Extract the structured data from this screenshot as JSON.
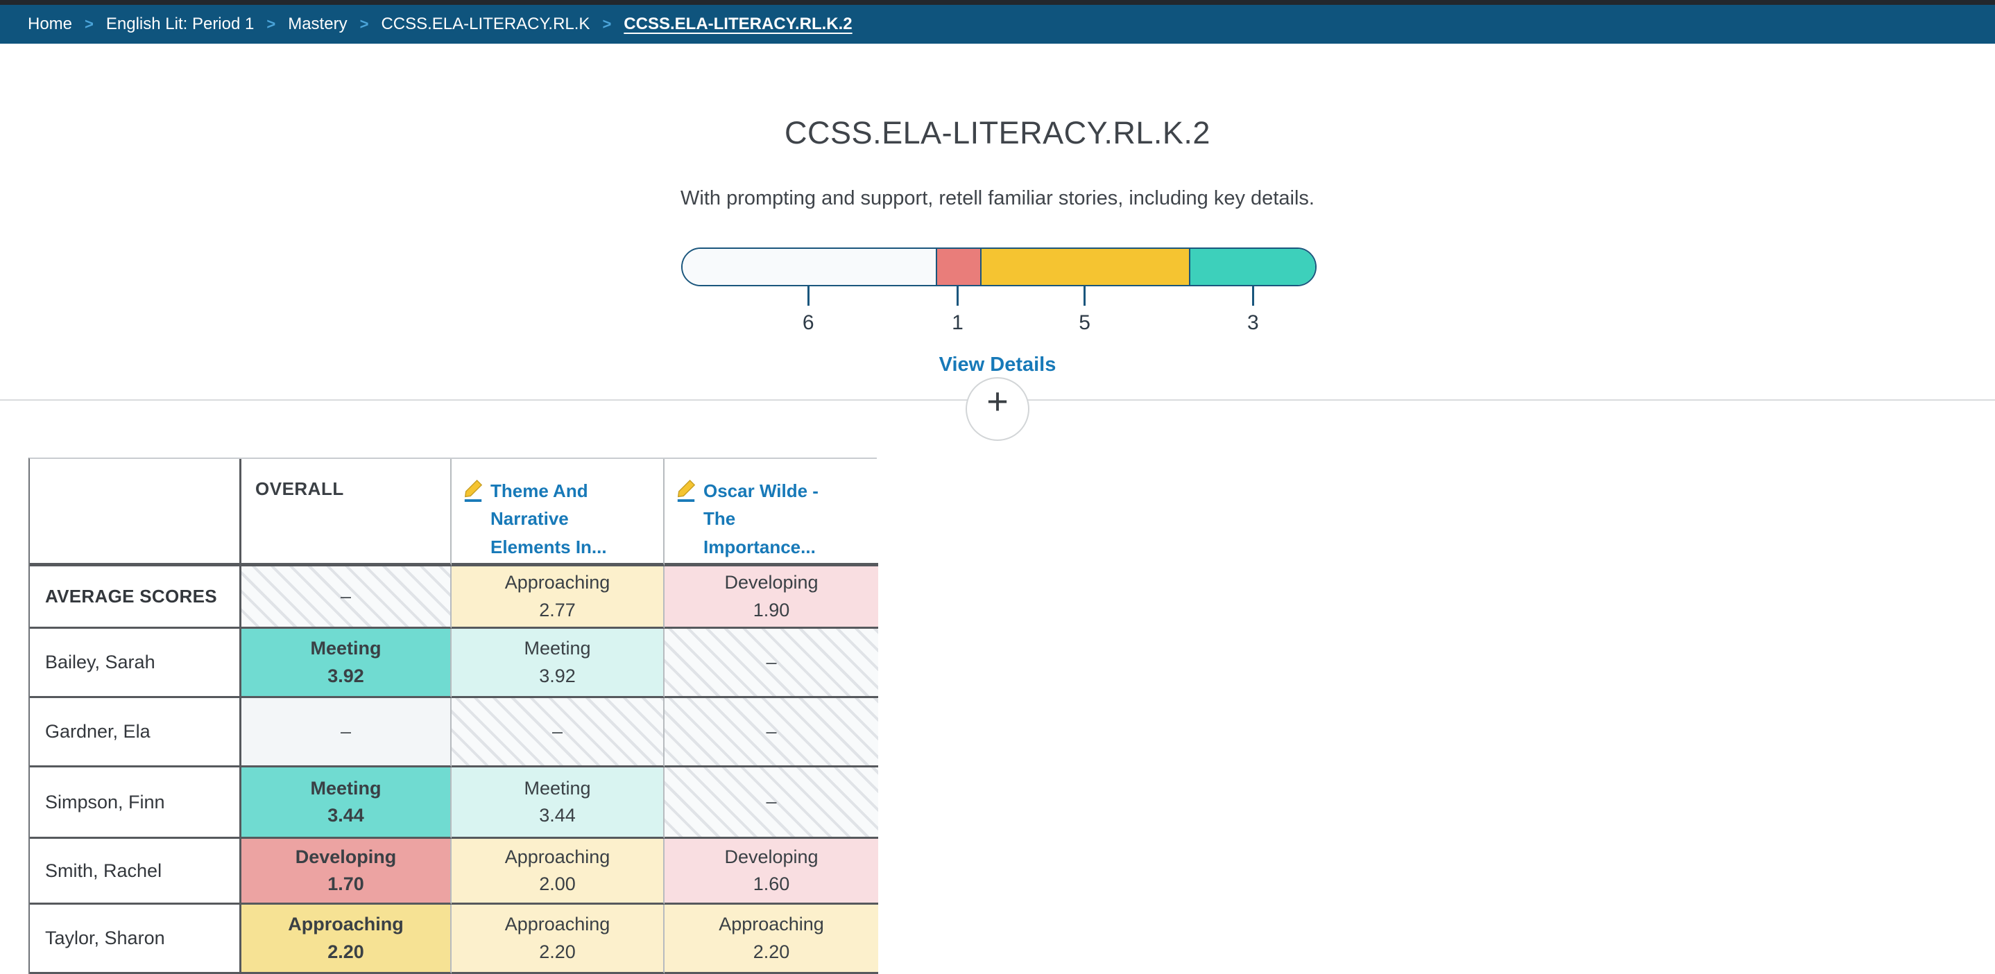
{
  "breadcrumb": {
    "separator": ">",
    "items": [
      {
        "label": "Home",
        "active": false
      },
      {
        "label": "English Lit: Period 1",
        "active": false
      },
      {
        "label": "Mastery",
        "active": false
      },
      {
        "label": "CCSS.ELA-LITERACY.RL.K",
        "active": false
      },
      {
        "label": "CCSS.ELA-LITERACY.RL.K.2",
        "active": true
      }
    ]
  },
  "standard": {
    "title": "CCSS.ELA-LITERACY.RL.K.2",
    "description": "With prompting and support, retell familiar stories, including key details."
  },
  "mastery_bar": {
    "border_color": "#1a567d",
    "segments": [
      {
        "count": "6",
        "color": "#f8fafc",
        "width_pct": 40
      },
      {
        "count": "1",
        "color": "#e97d7a",
        "width_pct": 7
      },
      {
        "count": "5",
        "color": "#f5c431",
        "width_pct": 33
      },
      {
        "count": "3",
        "color": "#3dd0bb",
        "width_pct": 20
      }
    ]
  },
  "actions": {
    "view_details": "View Details",
    "add_button": "+"
  },
  "table": {
    "corner": "",
    "columns": [
      {
        "label": "OVERALL",
        "type": "overall"
      },
      {
        "label": "Theme And Narrative Elements In...",
        "type": "assignment",
        "icon": "pencil-icon"
      },
      {
        "label": "Oscar Wilde - The Importance...",
        "type": "assignment",
        "icon": "pencil-icon"
      }
    ],
    "tones": {
      "teal-strong": "#70dbd1",
      "teal-light": "#d9f4f1",
      "red-strong": "#eca3a2",
      "pink-light": "#f9dee1",
      "yellow-strong": "#f6e294",
      "yellow-light": "#fcf0cc"
    },
    "rows": [
      {
        "name": "AVERAGE SCORES",
        "average_row": true,
        "cells": [
          {
            "type": "hatch",
            "text": "–"
          },
          {
            "type": "score",
            "level": "Approaching",
            "value": "2.77",
            "tone": "yellow-light"
          },
          {
            "type": "score",
            "level": "Developing",
            "value": "1.90",
            "tone": "pink-light"
          }
        ]
      },
      {
        "name": "Bailey, Sarah",
        "cells": [
          {
            "type": "score",
            "level": "Meeting",
            "value": "3.92",
            "tone": "teal-strong",
            "bold": true
          },
          {
            "type": "score",
            "level": "Meeting",
            "value": "3.92",
            "tone": "teal-light"
          },
          {
            "type": "hatch",
            "text": "–"
          }
        ]
      },
      {
        "name": "Gardner, Ela",
        "cells": [
          {
            "type": "plain",
            "text": "–"
          },
          {
            "type": "hatch",
            "text": "–"
          },
          {
            "type": "hatch",
            "text": "–"
          }
        ]
      },
      {
        "name": "Simpson, Finn",
        "cells": [
          {
            "type": "score",
            "level": "Meeting",
            "value": "3.44",
            "tone": "teal-strong",
            "bold": true
          },
          {
            "type": "score",
            "level": "Meeting",
            "value": "3.44",
            "tone": "teal-light"
          },
          {
            "type": "hatch",
            "text": "–"
          }
        ]
      },
      {
        "name": "Smith, Rachel",
        "cells": [
          {
            "type": "score",
            "level": "Developing",
            "value": "1.70",
            "tone": "red-strong",
            "bold": true
          },
          {
            "type": "score",
            "level": "Approaching",
            "value": "2.00",
            "tone": "yellow-light"
          },
          {
            "type": "score",
            "level": "Developing",
            "value": "1.60",
            "tone": "pink-light"
          }
        ]
      },
      {
        "name": "Taylor, Sharon",
        "cells": [
          {
            "type": "score",
            "level": "Approaching",
            "value": "2.20",
            "tone": "yellow-strong",
            "bold": true
          },
          {
            "type": "score",
            "level": "Approaching",
            "value": "2.20",
            "tone": "yellow-light"
          },
          {
            "type": "score",
            "level": "Approaching",
            "value": "2.20",
            "tone": "yellow-light"
          }
        ]
      }
    ]
  },
  "colors": {
    "top_strip": "#23272c",
    "breadcrumb_bg": "#0f547d",
    "breadcrumb_separator": "#4ba4d9",
    "link_blue": "#1779b8",
    "divider": "#d9dbdd",
    "dark_grid": "#56595d",
    "light_grid": "#b7bbbf"
  }
}
